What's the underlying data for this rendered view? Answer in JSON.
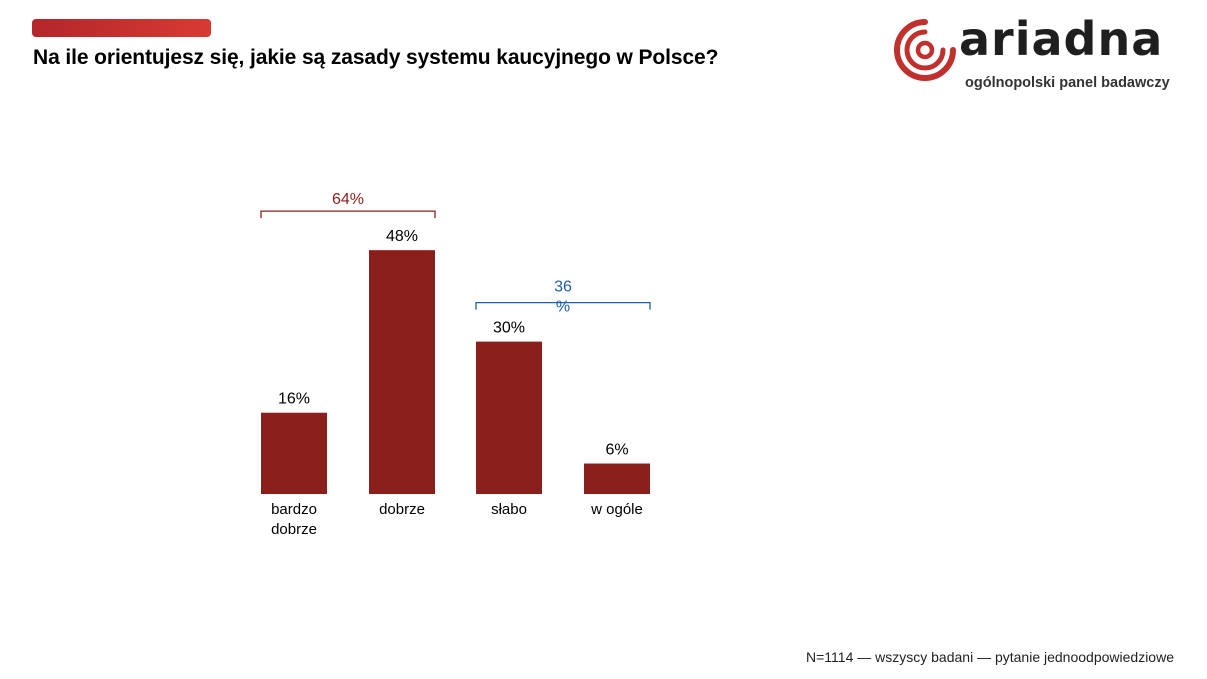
{
  "header": {
    "title": "Na ile orientujesz się, jakie są zasady systemu kaucyjnego w Polsce?"
  },
  "logo": {
    "wordmark": "ariadna",
    "tagline": "ogólnopolski panel badawczy",
    "icon": "ariadna-spiral-icon"
  },
  "colors": {
    "bar": "#8b1f1c",
    "accent": "#c0302d",
    "bracket_positive": "#8b1f1c",
    "bracket_negative": "#1f5fa8"
  },
  "chart_data": {
    "type": "bar",
    "title": "Na ile orientujesz się, jakie są zasady systemu kaucyjnego w Polsce?",
    "xlabel": "",
    "ylabel": "",
    "grid": false,
    "categories": [
      [
        "bardzo",
        "dobrze"
      ],
      [
        "dobrze"
      ],
      [
        "słabo"
      ],
      [
        "w ogóle"
      ]
    ],
    "values": [
      16,
      48,
      30,
      6
    ],
    "data_labels": [
      "16%",
      "48%",
      "30%",
      "6%"
    ],
    "groups": [
      {
        "label": "64%",
        "from": 0,
        "to": 1,
        "value": 64
      },
      {
        "label_lines": [
          "36",
          "%"
        ],
        "from": 2,
        "to": 3,
        "value": 36
      }
    ]
  },
  "footnote": "N=1114 — wszyscy badani — pytanie jednoodpowiedziowe"
}
